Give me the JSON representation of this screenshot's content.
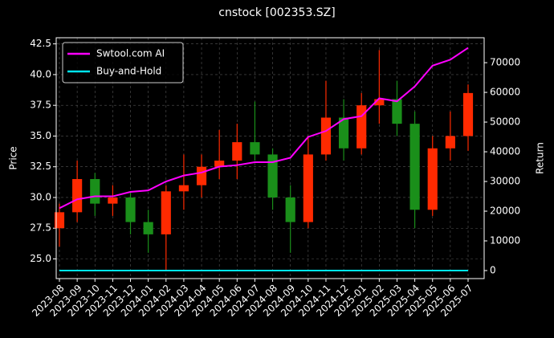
{
  "chart_data": {
    "type": "candlestick",
    "title": "cnstock [002353.SZ]",
    "ylabel": "Price",
    "y2label": "Return",
    "categories": [
      "2023-08",
      "2023-09",
      "2023-10",
      "2023-11",
      "2023-12",
      "2024-01",
      "2024-02",
      "2024-03",
      "2024-04",
      "2024-05",
      "2024-06",
      "2024-07",
      "2024-08",
      "2024-09",
      "2024-10",
      "2024-11",
      "2024-12",
      "2025-01",
      "2025-02",
      "2025-03",
      "2025-04",
      "2025-05",
      "2025-06",
      "2025-07"
    ],
    "open": [
      27.5,
      28.8,
      31.5,
      29.5,
      30.0,
      28.0,
      27.0,
      30.5,
      31.0,
      32.5,
      33.0,
      34.5,
      33.5,
      30.0,
      28.0,
      33.5,
      36.5,
      34.0,
      37.5,
      38.0,
      36.0,
      29.0,
      34.0,
      35.0
    ],
    "high": [
      29.5,
      33.0,
      32.0,
      31.0,
      30.5,
      29.0,
      31.0,
      33.5,
      33.5,
      35.5,
      36.0,
      37.8,
      34.0,
      31.0,
      35.0,
      39.5,
      38.0,
      38.5,
      42.0,
      39.5,
      37.0,
      35.0,
      37.0,
      39.2
    ],
    "low": [
      26.0,
      28.0,
      28.5,
      28.5,
      27.0,
      25.5,
      24.0,
      29.0,
      30.0,
      31.5,
      31.5,
      33.0,
      29.0,
      25.5,
      27.5,
      33.0,
      33.0,
      33.5,
      36.0,
      35.0,
      27.5,
      28.5,
      33.0,
      33.8
    ],
    "close": [
      28.8,
      31.5,
      29.5,
      30.0,
      28.0,
      27.0,
      30.5,
      31.0,
      32.5,
      33.0,
      34.5,
      33.5,
      30.0,
      28.0,
      33.5,
      36.5,
      34.0,
      37.5,
      38.0,
      36.0,
      29.0,
      34.0,
      35.0,
      38.5
    ],
    "up_color": "#ff2a00",
    "down_color": "#1a8f1a",
    "series": [
      {
        "name": "Swtool.com AI",
        "color": "#ff00ff",
        "axis": "y2",
        "values": [
          21000,
          24000,
          25000,
          25000,
          26500,
          27000,
          30000,
          32000,
          33000,
          35000,
          35500,
          36500,
          36500,
          38000,
          45000,
          47000,
          51000,
          52000,
          58000,
          57000,
          62000,
          69000,
          71000,
          75000
        ]
      },
      {
        "name": "Buy-and-Hold",
        "color": "#00e5ee",
        "axis": "y2",
        "values": [
          0,
          0,
          0,
          0,
          0,
          0,
          0,
          0,
          0,
          0,
          0,
          0,
          0,
          0,
          0,
          0,
          0,
          0,
          0,
          0,
          0,
          0,
          0,
          0
        ]
      }
    ],
    "ylim": [
      23.4,
      43.0
    ],
    "yticks": [
      {
        "value": 25,
        "label": "25.0"
      },
      {
        "value": 27.5,
        "label": "27.5"
      },
      {
        "value": 30,
        "label": "30.0"
      },
      {
        "value": 32.5,
        "label": "32.5"
      },
      {
        "value": 35,
        "label": "35.0"
      },
      {
        "value": 37.5,
        "label": "37.5"
      },
      {
        "value": 40,
        "label": "40.0"
      },
      {
        "value": 42.5,
        "label": "42.5"
      }
    ],
    "y2lim": [
      -2700,
      78400
    ],
    "y2ticks": [
      0,
      10000,
      20000,
      30000,
      40000,
      50000,
      60000,
      70000
    ],
    "grid": true,
    "legend": "upper-left"
  }
}
